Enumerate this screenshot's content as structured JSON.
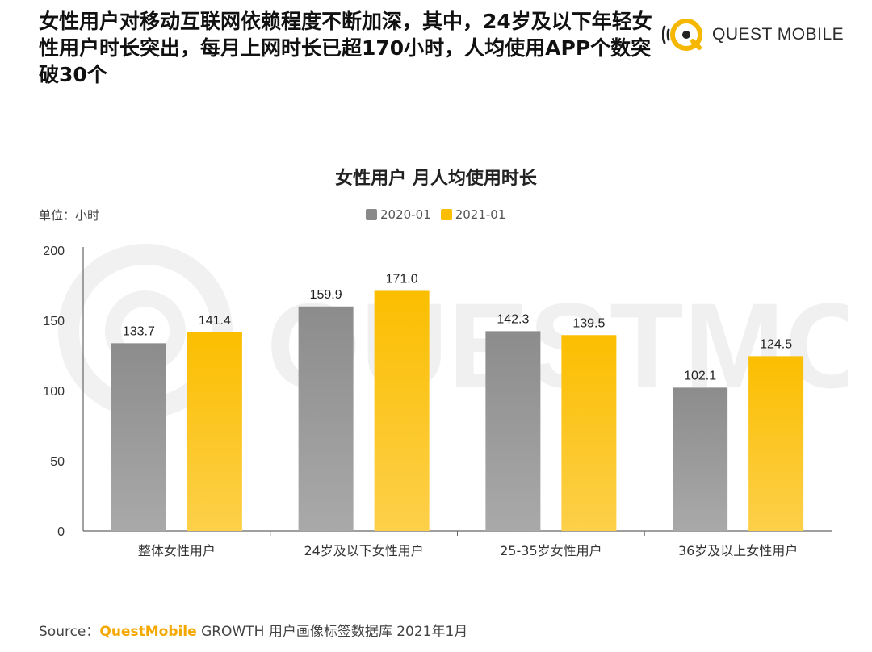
{
  "headline": "女性用户对移动互联网依赖程度不断加深，其中，24岁及以下年轻女性用户时长突出，每月上网时长已超170小时，人均使用APP个数突破30个",
  "brand": {
    "name": "QUEST MOBILE",
    "icon": "questmobile-logo-icon",
    "color": "#f5b700"
  },
  "watermark_text": "QUESTMOBILE",
  "unit_label": "单位：小时",
  "source": {
    "prefix": "Source：",
    "brand": "QuestMobile",
    "rest": " GROWTH 用户画像标签数据库 2021年1月"
  },
  "chart_data": {
    "type": "bar",
    "title": "女性用户 月人均使用时长",
    "categories": [
      "整体女性用户",
      "24岁及以下女性用户",
      "25-35岁女性用户",
      "36岁及以上女性用户"
    ],
    "series": [
      {
        "name": "2020-01",
        "values": [
          133.7,
          159.9,
          142.3,
          102.1
        ],
        "color": "#8a8a8a"
      },
      {
        "name": "2021-01",
        "values": [
          141.4,
          171.0,
          139.5,
          124.5
        ],
        "color": "#fbbe00"
      }
    ],
    "ylim": [
      0,
      200
    ],
    "yticks": [
      0,
      50,
      100,
      150,
      200
    ],
    "grid": false,
    "legend_position": "top-center"
  }
}
